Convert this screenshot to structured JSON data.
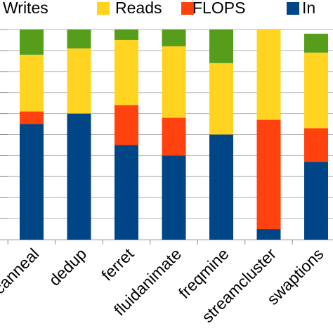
{
  "chart_data": {
    "type": "bar",
    "stacked": true,
    "categories": [
      "canneal",
      "dedup",
      "ferret",
      "fluidanimate",
      "freqmine",
      "streamcluster",
      "swaptions"
    ],
    "series": [
      {
        "name": "Int",
        "color": "#004586",
        "values": [
          0.55,
          0.6,
          0.45,
          0.4,
          0.5,
          0.05,
          0.37
        ]
      },
      {
        "name": "FLOPS",
        "color": "#ff420e",
        "values": [
          0.06,
          0.0,
          0.19,
          0.18,
          0.0,
          0.52,
          0.16
        ]
      },
      {
        "name": "Reads",
        "color": "#ffd320",
        "values": [
          0.27,
          0.31,
          0.31,
          0.34,
          0.34,
          0.43,
          0.36
        ]
      },
      {
        "name": "Writes",
        "color": "#579d1c",
        "values": [
          0.12,
          0.09,
          0.05,
          0.08,
          0.16,
          0.0,
          0.09
        ]
      }
    ],
    "ylim": [
      0,
      1
    ],
    "grid": true,
    "legend_position": "top",
    "legend_order": [
      "Writes",
      "Reads",
      "FLOPS",
      "Int"
    ],
    "legend_labels": [
      "Writes",
      "Reads",
      "FLOPS",
      "In"
    ],
    "x_tick_rotation": -45
  }
}
